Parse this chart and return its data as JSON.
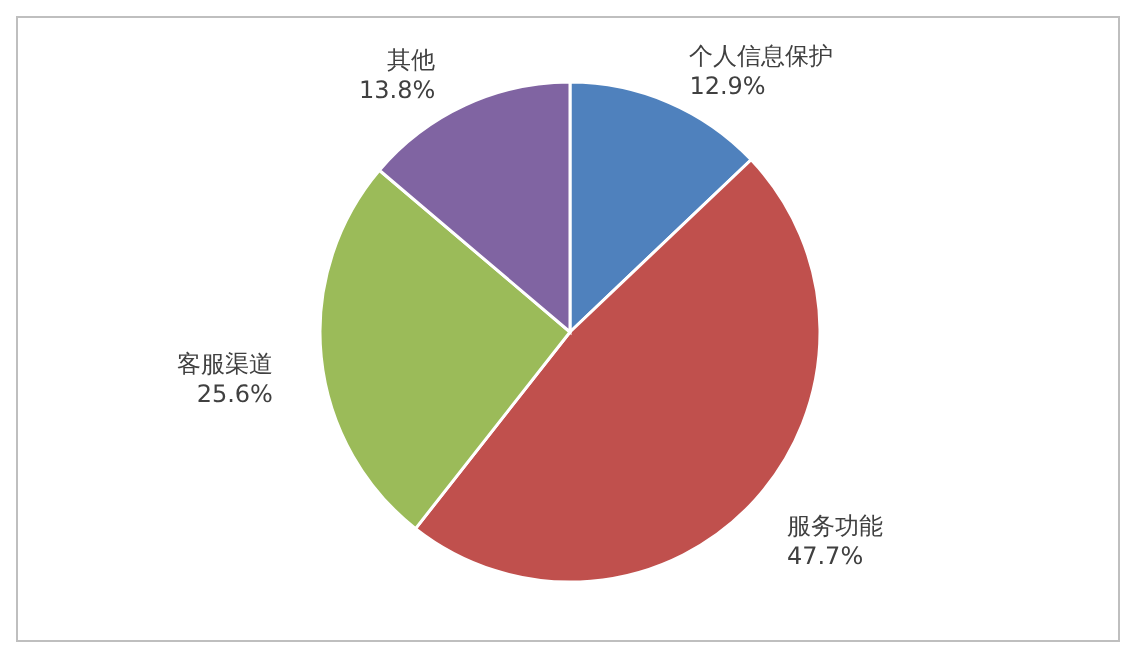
{
  "chart_data": {
    "type": "pie",
    "categories": [
      "个人信息保护",
      "服务功能",
      "客服渠道",
      "其他"
    ],
    "values": [
      12.9,
      47.7,
      25.6,
      13.8
    ],
    "colors": [
      "#4f81bd",
      "#c0504d",
      "#9bbb59",
      "#8064a2"
    ],
    "value_labels": [
      "12.9%",
      "47.7%",
      "25.6%",
      "13.8%"
    ]
  }
}
